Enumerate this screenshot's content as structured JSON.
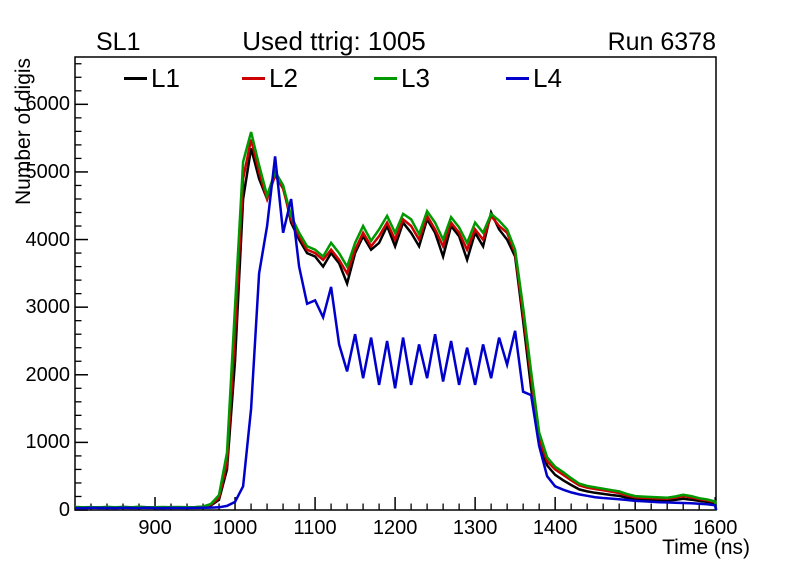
{
  "chart_data": {
    "type": "line",
    "title_left": "SL1",
    "title_center": "Used ttrig: 1005",
    "title_right": "Run 6378",
    "xlabel": "Time (ns)",
    "ylabel": "Number of digis",
    "xlim": [
      800,
      1601
    ],
    "ylim": [
      0,
      6700
    ],
    "x_major_ticks": [
      900,
      1000,
      1100,
      1200,
      1300,
      1400,
      1500,
      1600
    ],
    "x_minor_step": 20,
    "y_major_ticks": [
      0,
      1000,
      2000,
      3000,
      4000,
      5000,
      6000
    ],
    "y_minor_step": 200,
    "grid": false,
    "legend_position": "top-inside-horizontal",
    "frame_color": "#000000",
    "background_color": "#ffffff",
    "x_start": 800,
    "x_step": 10,
    "series": [
      {
        "name": "L1",
        "color": "#000000",
        "values": [
          40,
          35,
          42,
          38,
          40,
          36,
          44,
          40,
          38,
          42,
          40,
          37,
          43,
          40,
          38,
          41,
          45,
          70,
          150,
          600,
          2200,
          4600,
          5350,
          4900,
          4600,
          5000,
          4800,
          4250,
          4000,
          3800,
          3750,
          3600,
          3800,
          3650,
          3350,
          3800,
          4050,
          3850,
          3950,
          4200,
          3900,
          4250,
          4100,
          3900,
          4300,
          4100,
          3750,
          4200,
          4050,
          3700,
          4100,
          3900,
          4400,
          4150,
          4000,
          3750,
          2800,
          1800,
          1000,
          660,
          520,
          440,
          370,
          305,
          275,
          255,
          238,
          222,
          208,
          180,
          160,
          155,
          150,
          146,
          142,
          150,
          165,
          152,
          135,
          120,
          100
        ]
      },
      {
        "name": "L2",
        "color": "#cc0000",
        "values": [
          42,
          38,
          40,
          36,
          43,
          39,
          41,
          37,
          44,
          40,
          38,
          42,
          39,
          41,
          38,
          40,
          48,
          80,
          180,
          700,
          2600,
          4900,
          5480,
          5000,
          4600,
          4950,
          4750,
          4300,
          4050,
          3850,
          3800,
          3700,
          3850,
          3700,
          3500,
          3850,
          4100,
          3900,
          4050,
          4250,
          4000,
          4300,
          4200,
          4000,
          4350,
          4150,
          3900,
          4250,
          4100,
          3850,
          4150,
          4000,
          4350,
          4200,
          4100,
          3800,
          2900,
          1950,
          1050,
          720,
          600,
          520,
          440,
          365,
          330,
          310,
          292,
          272,
          252,
          215,
          188,
          182,
          176,
          170,
          166,
          182,
          205,
          188,
          160,
          142,
          115
        ]
      },
      {
        "name": "L3",
        "color": "#009900",
        "values": [
          45,
          40,
          43,
          38,
          46,
          41,
          44,
          39,
          47,
          42,
          40,
          45,
          41,
          44,
          40,
          43,
          50,
          90,
          220,
          850,
          3000,
          5150,
          5590,
          5100,
          4650,
          5000,
          4800,
          4350,
          4100,
          3900,
          3850,
          3750,
          3950,
          3800,
          3600,
          3950,
          4200,
          3980,
          4150,
          4350,
          4100,
          4380,
          4300,
          4080,
          4420,
          4250,
          4000,
          4330,
          4180,
          3950,
          4250,
          4100,
          4380,
          4280,
          4150,
          3850,
          3000,
          2050,
          1150,
          780,
          640,
          560,
          470,
          390,
          355,
          335,
          315,
          295,
          275,
          235,
          205,
          198,
          192,
          186,
          182,
          200,
          225,
          205,
          175,
          155,
          125
        ]
      },
      {
        "name": "L4",
        "color": "#0000cc",
        "values": [
          30,
          28,
          32,
          29,
          31,
          28,
          33,
          30,
          29,
          32,
          30,
          28,
          31,
          30,
          29,
          31,
          32,
          35,
          40,
          60,
          120,
          350,
          1500,
          3500,
          4200,
          5230,
          4100,
          4600,
          3600,
          3050,
          3100,
          2850,
          3300,
          2450,
          2050,
          2600,
          1950,
          2550,
          1850,
          2500,
          1800,
          2550,
          1850,
          2450,
          1950,
          2600,
          1900,
          2500,
          1850,
          2400,
          1850,
          2450,
          1950,
          2550,
          2150,
          2650,
          1750,
          1700,
          950,
          500,
          350,
          300,
          260,
          230,
          210,
          190,
          178,
          168,
          158,
          148,
          135,
          128,
          122,
          116,
          112,
          108,
          104,
          100,
          92,
          84,
          70
        ]
      }
    ]
  }
}
